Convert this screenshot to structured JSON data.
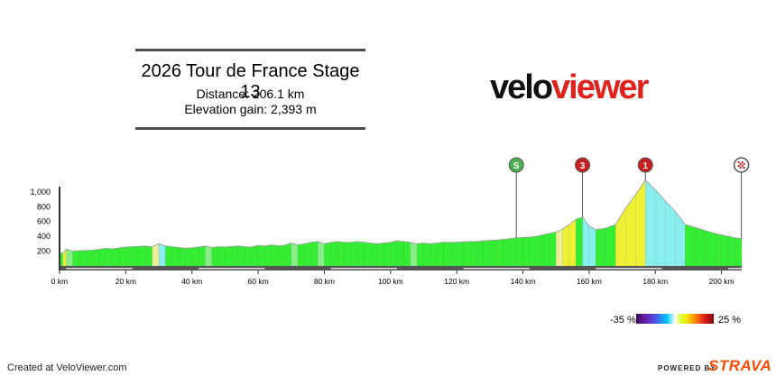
{
  "header": {
    "title": "2026 Tour de France Stage 13",
    "distance_line": "Distance: 206.1 km",
    "elevation_line": "Elevation gain: 2,393 m"
  },
  "logo": {
    "part1": "velo",
    "part2": "viewer"
  },
  "legend": {
    "min_label": "-35 %",
    "max_label": "25 %"
  },
  "footer": {
    "created": "Created at VeloViewer.com",
    "powered": "POWERED BY",
    "brand": "STRAVA"
  },
  "colors": {
    "base_green": "#33ee33",
    "steep_yellow": "#eef033",
    "climb_cyan": "#88eeee",
    "pale_yellow": "#eeee99",
    "light_green": "#88ee88",
    "marker_red": "#c81e1e",
    "marker_green": "#4caf50",
    "strava_orange": "#fc4c02"
  },
  "chart_data": {
    "type": "area",
    "title": "2026 Tour de France Stage 13",
    "xlabel": "",
    "ylabel": "",
    "xlim": [
      0,
      206.1
    ],
    "ylim": [
      0,
      1200
    ],
    "x_tick_labels": [
      "0 km",
      "20 km",
      "40 km",
      "60 km",
      "80 km",
      "100 km",
      "120 km",
      "140 km",
      "160 km",
      "180 km",
      "200 km"
    ],
    "y_tick_labels": [
      "200",
      "400",
      "600",
      "800",
      "1,000"
    ],
    "grid": false,
    "markers": [
      {
        "type": "sprint",
        "label": "S",
        "km": 138
      },
      {
        "type": "climb",
        "label": "3",
        "km": 158
      },
      {
        "type": "climb",
        "label": "1",
        "km": 177
      },
      {
        "type": "finish",
        "label": "",
        "km": 206
      }
    ],
    "series": [
      {
        "x": [
          0,
          1,
          2,
          4,
          6,
          8,
          10,
          12,
          14,
          16,
          18,
          20,
          22,
          24,
          26,
          28,
          30,
          32,
          34,
          36,
          38,
          40,
          42,
          44,
          46,
          48,
          50,
          52,
          54,
          56,
          58,
          60,
          62,
          64,
          66,
          68,
          70,
          72,
          74,
          76,
          78,
          80,
          82,
          84,
          86,
          88,
          90,
          92,
          94,
          96,
          98,
          100,
          102,
          104,
          106,
          108,
          110,
          112,
          114,
          116,
          118,
          120,
          122,
          124,
          126,
          128,
          130,
          132,
          134,
          136,
          138,
          140,
          142,
          144,
          146,
          148,
          150,
          152,
          154,
          156,
          158,
          160,
          162,
          165,
          168,
          171,
          174,
          177,
          180,
          183,
          186,
          189,
          192,
          195,
          198,
          200,
          202,
          204,
          206.1
        ],
        "elevation": [
          180,
          170,
          230,
          200,
          205,
          210,
          215,
          225,
          240,
          230,
          245,
          255,
          260,
          265,
          270,
          260,
          300,
          270,
          260,
          250,
          240,
          245,
          255,
          270,
          250,
          260,
          255,
          265,
          270,
          260,
          255,
          280,
          270,
          285,
          275,
          280,
          310,
          285,
          300,
          320,
          330,
          300,
          320,
          330,
          320,
          320,
          330,
          320,
          310,
          300,
          310,
          320,
          340,
          330,
          320,
          300,
          310,
          300,
          310,
          320,
          320,
          320,
          325,
          330,
          330,
          340,
          345,
          350,
          360,
          370,
          380,
          385,
          390,
          400,
          420,
          440,
          460,
          500,
          560,
          630,
          660,
          540,
          490,
          510,
          560,
          780,
          960,
          1160,
          1030,
          880,
          740,
          560,
          520,
          480,
          440,
          420,
          400,
          380,
          370
        ],
        "gradient_percent": [
          -1,
          6,
          -3,
          0,
          0,
          0,
          1,
          1,
          -1,
          1,
          1,
          0,
          0,
          0,
          -1,
          4,
          -4,
          -1,
          -1,
          -1,
          0,
          1,
          1,
          -2,
          1,
          0,
          1,
          0,
          -1,
          0,
          1,
          -1,
          1,
          -1,
          0,
          3,
          -3,
          1,
          2,
          1,
          -3,
          2,
          1,
          -1,
          0,
          1,
          -1,
          -1,
          -1,
          1,
          1,
          2,
          -1,
          -1,
          -2,
          1,
          -1,
          1,
          1,
          0,
          0,
          0,
          0,
          0,
          1,
          0,
          0,
          1,
          1,
          1,
          0,
          0,
          1,
          2,
          2,
          2,
          4,
          6,
          7,
          3,
          -12,
          -5,
          1,
          2,
          7,
          6,
          7,
          -4,
          -5,
          -5,
          -6,
          -1,
          -1,
          -1,
          -1,
          -1,
          -1,
          -1
        ]
      }
    ]
  }
}
